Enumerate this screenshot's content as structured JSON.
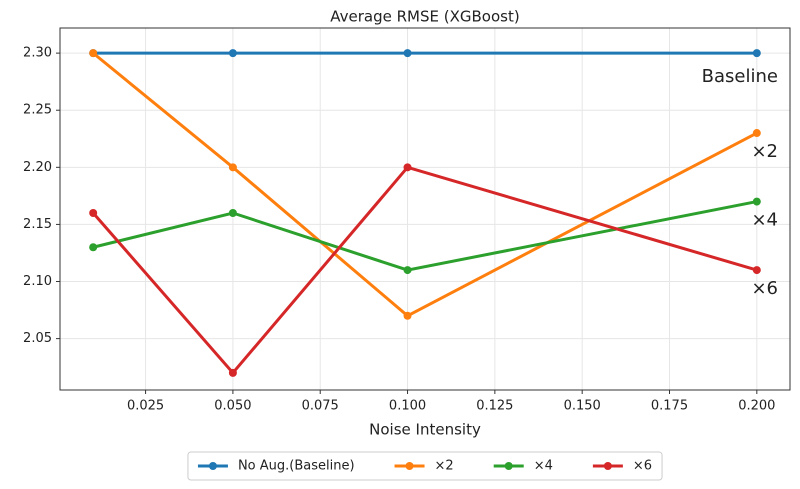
{
  "chart_data": {
    "type": "line",
    "title": "Average RMSE (XGBoost)",
    "x_label": "Noise Intensity",
    "x": [
      0.01,
      0.05,
      0.1,
      0.2
    ],
    "series": [
      {
        "name": "No Aug.(Baseline)",
        "color": "#1f77b4",
        "values": [
          2.3,
          2.3,
          2.3,
          2.3
        ]
      },
      {
        "name": "×2",
        "color": "#ff7f0e",
        "values": [
          2.3,
          2.2,
          2.07,
          2.23
        ]
      },
      {
        "name": "×4",
        "color": "#2ca02c",
        "values": [
          2.13,
          2.16,
          2.11,
          2.17
        ]
      },
      {
        "name": "×6",
        "color": "#d62728",
        "values": [
          2.16,
          2.02,
          2.2,
          2.11
        ]
      }
    ],
    "annotations": [
      "Baseline",
      "×2",
      "×4",
      "×6"
    ],
    "xlim": [
      0.0005,
      0.2095
    ],
    "xticks": [
      0.025,
      {
        "value": 0.05,
        "label": "0.050"
      },
      0.075,
      {
        "value": 0.1,
        "label": "0.100"
      },
      0.125,
      {
        "value": 0.15,
        "label": "0.150"
      },
      0.175,
      {
        "value": 0.2,
        "label": "0.200"
      }
    ],
    "ylim": [
      2.005,
      2.322
    ],
    "yticks": [
      {
        "value": 2.05,
        "label": "2.05"
      },
      {
        "value": 2.1,
        "label": "2.10"
      },
      {
        "value": 2.15,
        "label": "2.15"
      },
      {
        "value": 2.2,
        "label": "2.20"
      },
      {
        "value": 2.25,
        "label": "2.25"
      },
      {
        "value": 2.3,
        "label": "2.30"
      }
    ],
    "grid": true,
    "legend": "bottom"
  }
}
